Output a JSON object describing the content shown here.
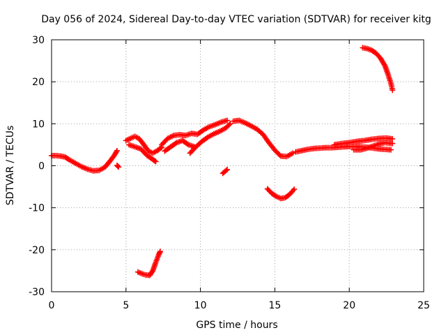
{
  "chart_data": {
    "type": "scatter",
    "title": "Day 056 of 2024, Sidereal Day-to-day VTEC variation (SDTVAR) for receiver kitg",
    "xlabel": "GPS time / hours",
    "ylabel": "SDTVAR / TECUs",
    "xlim": [
      0,
      25
    ],
    "ylim": [
      -30,
      30
    ],
    "xticks": [
      0,
      5,
      10,
      15,
      20,
      25
    ],
    "yticks": [
      -30,
      -20,
      -10,
      0,
      10,
      20,
      30
    ],
    "grid": true,
    "marker": "plus",
    "color": "#ff0000",
    "series": [
      {
        "name": "seg-a",
        "points": [
          [
            0.0,
            2.4
          ],
          [
            0.3,
            2.4
          ],
          [
            0.6,
            2.3
          ],
          [
            0.9,
            2.1
          ],
          [
            1.2,
            1.4
          ],
          [
            1.6,
            0.6
          ],
          [
            2.0,
            -0.2
          ],
          [
            2.4,
            -0.8
          ],
          [
            2.8,
            -1.2
          ],
          [
            3.2,
            -1.1
          ],
          [
            3.6,
            -0.3
          ],
          [
            3.9,
            1.0
          ],
          [
            4.2,
            2.4
          ],
          [
            4.4,
            3.6
          ]
        ]
      },
      {
        "name": "seg-a2",
        "points": [
          [
            4.4,
            0.1
          ],
          [
            4.5,
            -0.3
          ]
        ]
      },
      {
        "name": "seg-b",
        "points": [
          [
            5.0,
            6.0
          ],
          [
            5.3,
            6.5
          ],
          [
            5.6,
            7.0
          ],
          [
            5.9,
            6.4
          ],
          [
            6.2,
            5.0
          ],
          [
            6.5,
            3.5
          ],
          [
            6.8,
            3.0
          ],
          [
            7.1,
            3.6
          ],
          [
            7.4,
            4.4
          ]
        ]
      },
      {
        "name": "seg-b2",
        "points": [
          [
            5.2,
            5.0
          ],
          [
            5.6,
            4.5
          ],
          [
            6.0,
            4.0
          ],
          [
            6.4,
            2.5
          ],
          [
            6.8,
            1.5
          ],
          [
            7.0,
            1.0
          ]
        ]
      },
      {
        "name": "seg-c",
        "points": [
          [
            7.4,
            5.0
          ],
          [
            7.8,
            6.5
          ],
          [
            8.2,
            7.2
          ],
          [
            8.6,
            7.4
          ],
          [
            9.0,
            7.2
          ],
          [
            9.4,
            7.7
          ],
          [
            9.8,
            7.5
          ],
          [
            10.2,
            8.5
          ],
          [
            10.6,
            9.3
          ],
          [
            11.0,
            9.8
          ],
          [
            11.4,
            10.4
          ],
          [
            11.8,
            10.8
          ]
        ]
      },
      {
        "name": "seg-c2",
        "points": [
          [
            7.6,
            3.5
          ],
          [
            8.0,
            4.5
          ],
          [
            8.4,
            5.5
          ],
          [
            8.8,
            6.0
          ],
          [
            9.2,
            5.0
          ],
          [
            9.6,
            4.5
          ]
        ]
      },
      {
        "name": "seg-c3",
        "points": [
          [
            9.3,
            3.0
          ],
          [
            9.7,
            4.5
          ],
          [
            10.1,
            5.8
          ],
          [
            10.5,
            6.8
          ],
          [
            10.9,
            7.6
          ],
          [
            11.3,
            8.2
          ],
          [
            11.7,
            9.0
          ],
          [
            12.0,
            10.0
          ]
        ]
      },
      {
        "name": "seg-d",
        "points": [
          [
            11.5,
            -1.8
          ],
          [
            11.8,
            -0.9
          ]
        ]
      },
      {
        "name": "seg-e",
        "points": [
          [
            12.2,
            10.6
          ],
          [
            12.6,
            10.8
          ],
          [
            13.0,
            10.2
          ],
          [
            13.4,
            9.5
          ],
          [
            13.8,
            8.7
          ],
          [
            14.2,
            7.5
          ],
          [
            14.6,
            5.5
          ],
          [
            15.0,
            3.7
          ],
          [
            15.4,
            2.3
          ],
          [
            15.8,
            2.2
          ],
          [
            16.2,
            3.0
          ]
        ]
      },
      {
        "name": "seg-f",
        "points": [
          [
            14.5,
            -5.5
          ],
          [
            14.8,
            -6.6
          ],
          [
            15.1,
            -7.3
          ],
          [
            15.4,
            -7.8
          ],
          [
            15.7,
            -7.6
          ],
          [
            16.0,
            -6.8
          ],
          [
            16.3,
            -5.6
          ]
        ]
      },
      {
        "name": "seg-g",
        "points": [
          [
            16.4,
            3.3
          ],
          [
            16.8,
            3.6
          ],
          [
            17.2,
            3.9
          ],
          [
            17.6,
            4.1
          ],
          [
            18.0,
            4.2
          ],
          [
            18.4,
            4.3
          ],
          [
            18.8,
            4.3
          ],
          [
            19.2,
            4.4
          ],
          [
            19.6,
            4.5
          ],
          [
            20.0,
            4.6
          ],
          [
            20.4,
            4.6
          ],
          [
            20.8,
            4.5
          ],
          [
            21.2,
            4.4
          ],
          [
            21.6,
            4.2
          ],
          [
            22.0,
            4.0
          ],
          [
            22.4,
            3.9
          ],
          [
            22.8,
            3.8
          ]
        ]
      },
      {
        "name": "seg-g2",
        "points": [
          [
            19.0,
            5.0
          ],
          [
            19.5,
            5.3
          ],
          [
            20.0,
            5.5
          ],
          [
            20.5,
            5.8
          ],
          [
            21.0,
            6.0
          ],
          [
            21.5,
            6.3
          ],
          [
            22.0,
            6.5
          ],
          [
            22.5,
            6.6
          ],
          [
            22.9,
            6.4
          ]
        ]
      },
      {
        "name": "seg-g3",
        "points": [
          [
            20.3,
            3.8
          ],
          [
            20.8,
            3.8
          ],
          [
            21.2,
            4.2
          ],
          [
            21.6,
            4.7
          ],
          [
            22.0,
            5.2
          ],
          [
            22.4,
            5.5
          ],
          [
            22.9,
            5.3
          ]
        ]
      },
      {
        "name": "seg-h",
        "points": [
          [
            20.9,
            28.1
          ],
          [
            21.2,
            27.9
          ],
          [
            21.5,
            27.5
          ],
          [
            21.8,
            26.8
          ],
          [
            22.1,
            25.6
          ],
          [
            22.4,
            23.8
          ],
          [
            22.6,
            21.8
          ],
          [
            22.8,
            19.6
          ],
          [
            22.9,
            18.0
          ]
        ]
      },
      {
        "name": "seg-i",
        "points": [
          [
            5.8,
            -25.3
          ],
          [
            6.0,
            -25.6
          ],
          [
            6.3,
            -26.0
          ],
          [
            6.6,
            -26.1
          ],
          [
            6.8,
            -25.0
          ],
          [
            7.0,
            -23.0
          ],
          [
            7.2,
            -21.2
          ],
          [
            7.3,
            -20.4
          ]
        ]
      }
    ]
  }
}
